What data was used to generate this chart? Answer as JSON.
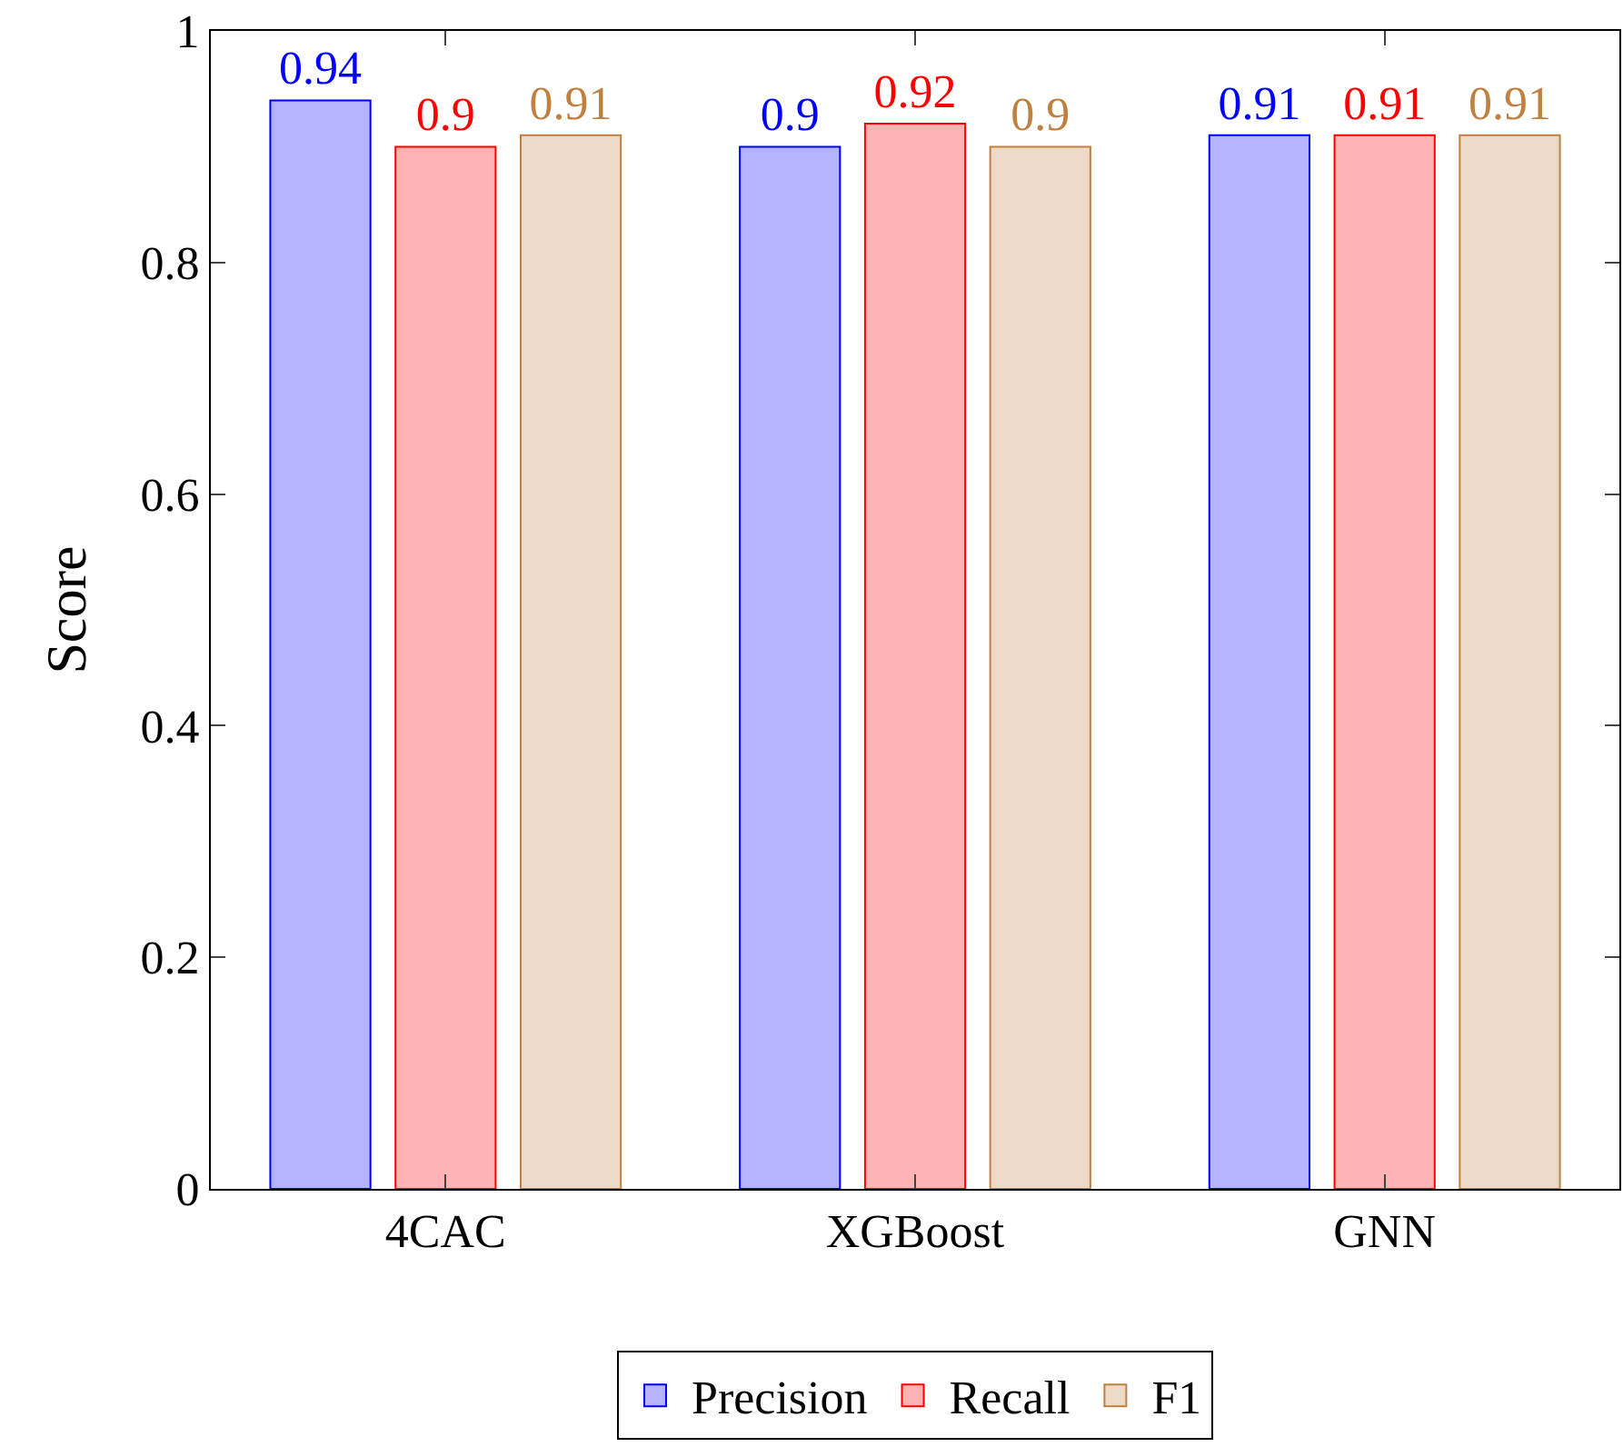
{
  "chart_data": {
    "type": "bar",
    "ylabel": "Score",
    "categories": [
      "4CAC",
      "XGBoost",
      "GNN"
    ],
    "series": [
      {
        "name": "Precision",
        "color": "#0000ff",
        "values": [
          0.94,
          0.9,
          0.91
        ]
      },
      {
        "name": "Recall",
        "color": "#ff0000",
        "values": [
          0.9,
          0.92,
          0.91
        ]
      },
      {
        "name": "F1",
        "color": "#bf8040",
        "values": [
          0.91,
          0.9,
          0.91
        ]
      }
    ],
    "ylim": [
      0,
      1
    ],
    "yticks": [
      0,
      0.2,
      0.4,
      0.6,
      0.8,
      1
    ],
    "grid": false,
    "legend": "bottom",
    "data_labels": true
  }
}
